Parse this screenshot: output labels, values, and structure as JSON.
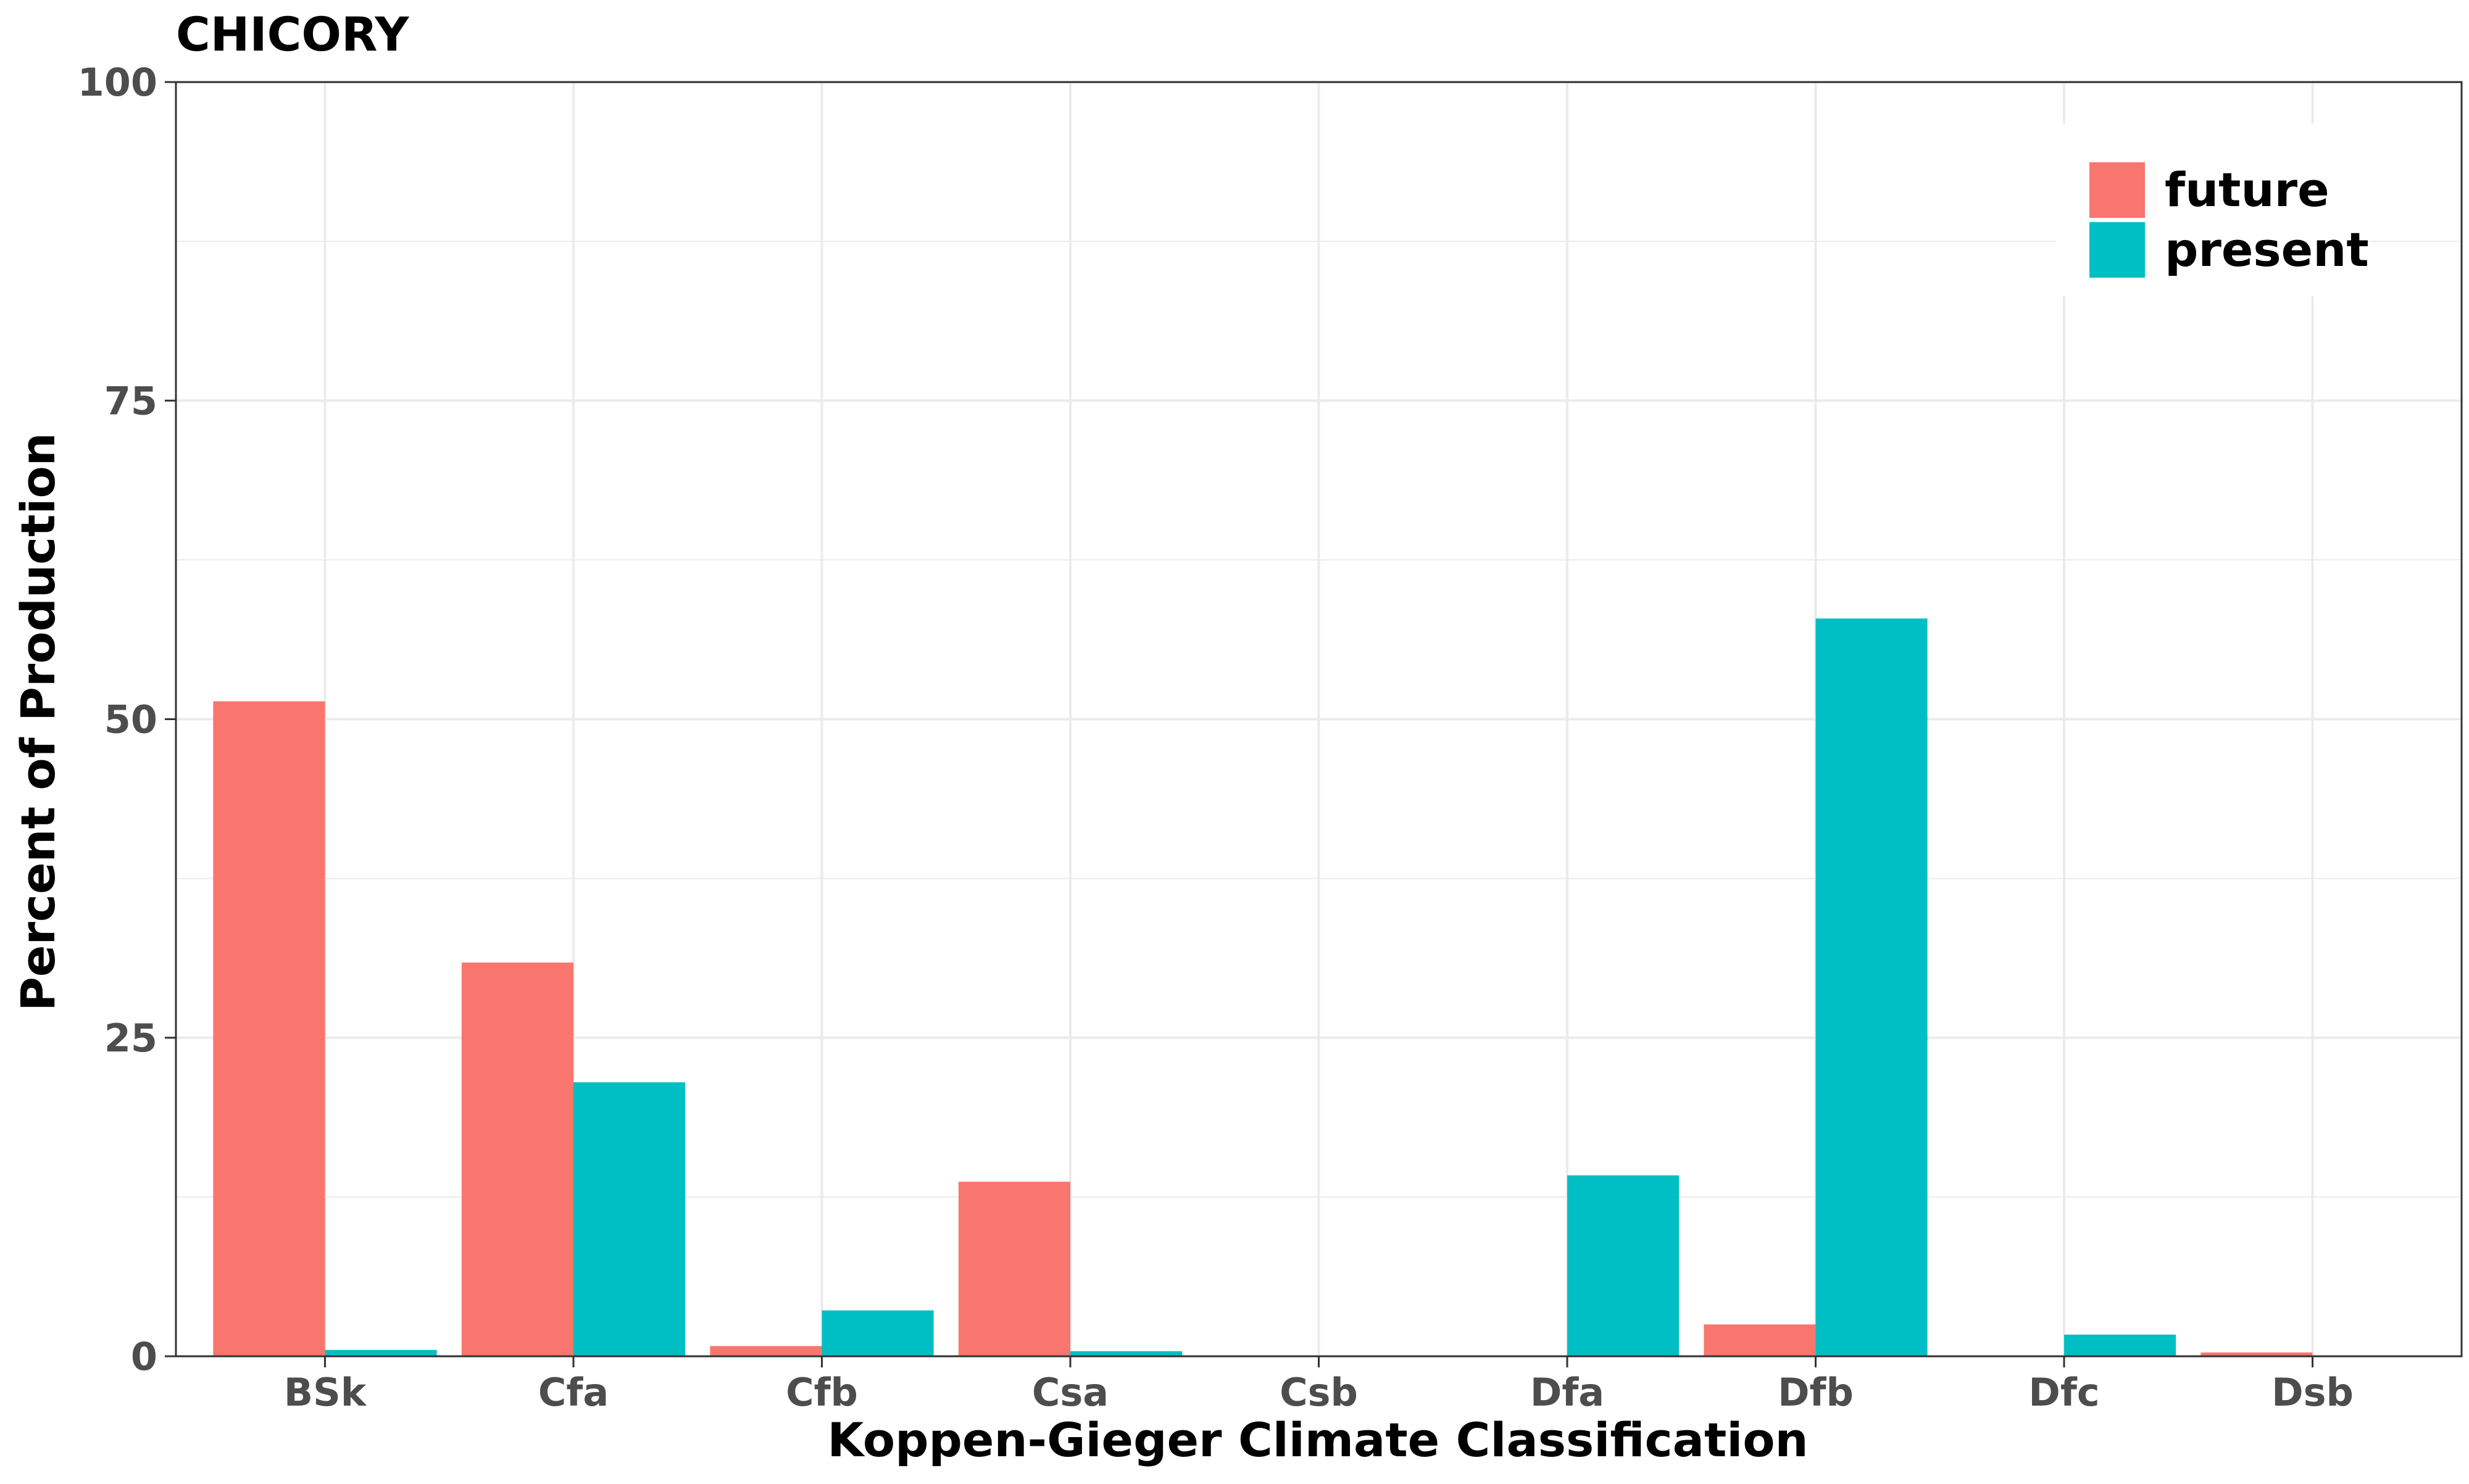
{
  "chart_data": {
    "type": "bar",
    "title": "CHICORY",
    "xlabel": "Koppen-Gieger Climate Classification",
    "ylabel": "Percent of Production",
    "categories": [
      "BSk",
      "Cfa",
      "Cfb",
      "Csa",
      "Csb",
      "Dfa",
      "Dfb",
      "Dfc",
      "Dsb"
    ],
    "series": [
      {
        "name": "future",
        "color": "#F8766D",
        "values": [
          51.4,
          30.9,
          0.8,
          13.7,
          0,
          0,
          2.5,
          0,
          0.3
        ]
      },
      {
        "name": "present",
        "color": "#00BFC4",
        "values": [
          0.5,
          21.5,
          3.6,
          0.4,
          0,
          14.2,
          57.9,
          1.7,
          0
        ]
      }
    ],
    "ylim": [
      0,
      100
    ],
    "yticks": [
      0,
      25,
      50,
      75,
      100
    ],
    "grid": true,
    "legend_position": "top-right"
  }
}
